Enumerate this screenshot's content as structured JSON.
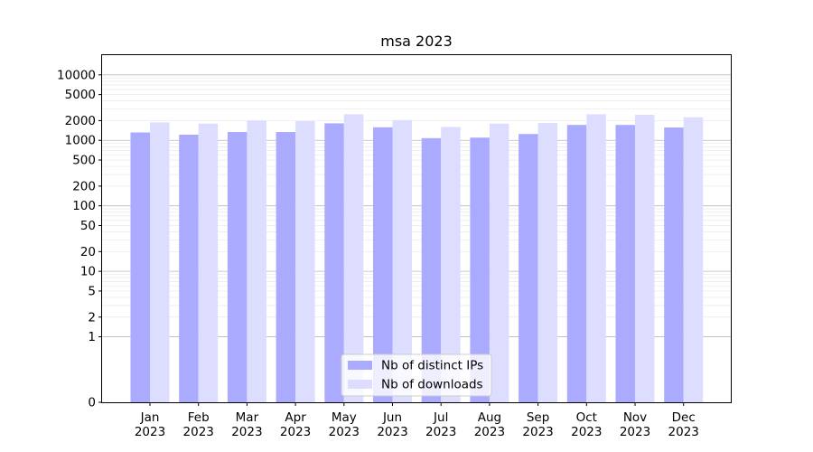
{
  "chart_data": {
    "type": "bar",
    "title": "msa 2023",
    "xlabel": "",
    "ylabel": "",
    "y_scale": "symlog",
    "ylim": [
      0,
      20000
    ],
    "y_ticks": [
      0,
      1,
      2,
      5,
      10,
      20,
      50,
      100,
      200,
      500,
      1000,
      2000,
      5000,
      10000
    ],
    "y_tick_labels": [
      "0",
      "1",
      "2",
      "5",
      "10",
      "20",
      "50",
      "100",
      "200",
      "500",
      "1000",
      "2000",
      "5000",
      "10000"
    ],
    "categories": [
      [
        "Jan",
        "2023"
      ],
      [
        "Feb",
        "2023"
      ],
      [
        "Mar",
        "2023"
      ],
      [
        "Apr",
        "2023"
      ],
      [
        "May",
        "2023"
      ],
      [
        "Jun",
        "2023"
      ],
      [
        "Jul",
        "2023"
      ],
      [
        "Aug",
        "2023"
      ],
      [
        "Sep",
        "2023"
      ],
      [
        "Oct",
        "2023"
      ],
      [
        "Nov",
        "2023"
      ],
      [
        "Dec",
        "2023"
      ]
    ],
    "series": [
      {
        "name": "Nb of distinct IPs",
        "color": "#aaaaff",
        "values": [
          1320,
          1220,
          1340,
          1340,
          1820,
          1580,
          1080,
          1100,
          1250,
          1720,
          1720,
          1570
        ]
      },
      {
        "name": "Nb of downloads",
        "color": "#ddddff",
        "values": [
          1880,
          1800,
          2010,
          1960,
          2500,
          2040,
          1600,
          1800,
          1840,
          2500,
          2460,
          2250
        ]
      }
    ],
    "grid": true,
    "legend_position": "lower center"
  }
}
